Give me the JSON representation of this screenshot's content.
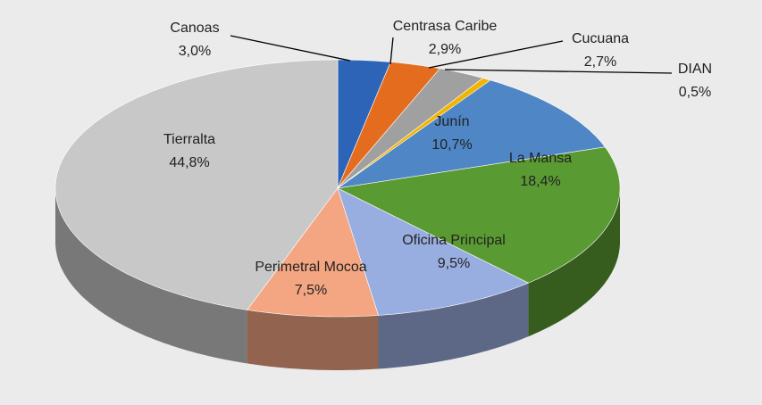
{
  "chart_data": {
    "type": "pie3d",
    "categories": [
      "Canoas",
      "Centrasa Caribe",
      "Cucuana",
      "DIAN",
      "Junín",
      "La Mansa",
      "Oficina Principal",
      "Perimetral Mocoa",
      "Tierralta"
    ],
    "values": [
      3.0,
      2.9,
      2.7,
      0.5,
      10.7,
      18.4,
      9.5,
      7.5,
      44.8
    ],
    "value_labels": [
      "3,0%",
      "2,9%",
      "2,7%",
      "0,5%",
      "10,7%",
      "18,4%",
      "9,5%",
      "7,5%",
      "44,8%"
    ],
    "colors": [
      "#2e64b8",
      "#e46c1f",
      "#a0a0a0",
      "#f2b400",
      "#4f86c6",
      "#5a9a32",
      "#99aee0",
      "#f4a582",
      "#c8c8c8"
    ]
  }
}
